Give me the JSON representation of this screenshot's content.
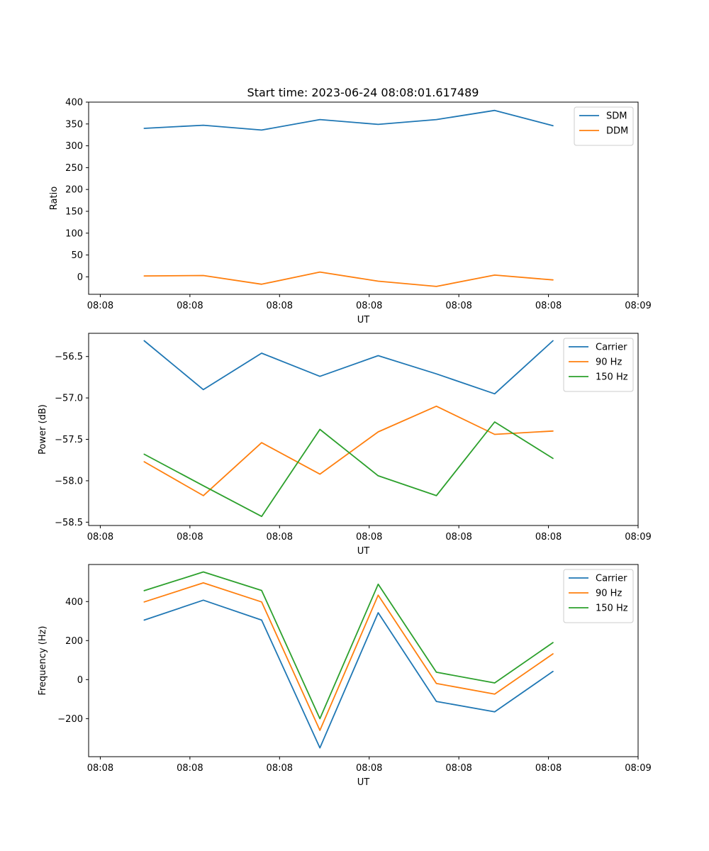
{
  "figure": {
    "title": "Start time: 2023-06-24 08:08:01.617489"
  },
  "chart_data": [
    {
      "type": "line",
      "title": "Start time: 2023-06-24 08:08:01.617489",
      "xlabel": "UT",
      "ylabel": "Ratio",
      "x_tick_labels": [
        "08:08",
        "08:08",
        "08:08",
        "08:08",
        "08:08",
        "08:08",
        "08:09"
      ],
      "x_ticks": [
        0,
        1,
        2,
        3,
        4,
        5,
        6
      ],
      "xlim": [
        -0.13,
        6.0
      ],
      "x": [
        0.49,
        1.15,
        1.8,
        2.45,
        3.1,
        3.75,
        4.4,
        5.05
      ],
      "ylim": [
        -40,
        400
      ],
      "y_ticks": [
        0,
        50,
        100,
        150,
        200,
        250,
        300,
        350,
        400
      ],
      "legend_position": "upper-right",
      "series": [
        {
          "name": "SDM",
          "color": "#1f77b4",
          "values": [
            340,
            347,
            336,
            360,
            349,
            360,
            381,
            346
          ]
        },
        {
          "name": "DDM",
          "color": "#ff7f0e",
          "values": [
            2,
            3,
            -17,
            11,
            -10,
            -22,
            4,
            -7
          ]
        }
      ]
    },
    {
      "type": "line",
      "xlabel": "UT",
      "ylabel": "Power (dB)",
      "x_tick_labels": [
        "08:08",
        "08:08",
        "08:08",
        "08:08",
        "08:08",
        "08:08",
        "08:09"
      ],
      "x_ticks": [
        0,
        1,
        2,
        3,
        4,
        5,
        6
      ],
      "xlim": [
        -0.13,
        6.0
      ],
      "x": [
        0.49,
        1.15,
        1.8,
        2.45,
        3.1,
        3.75,
        4.4,
        5.05
      ],
      "ylim": [
        -58.54,
        -56.22
      ],
      "y_ticks": [
        -58.5,
        -58.0,
        -57.5,
        -57.0,
        -56.5
      ],
      "y_tick_labels": [
        "−58.5",
        "−58.0",
        "−57.5",
        "−57.0",
        "−56.5"
      ],
      "legend_position": "upper-right",
      "series": [
        {
          "name": "Carrier",
          "color": "#1f77b4",
          "values": [
            -56.31,
            -56.9,
            -56.46,
            -56.74,
            -56.49,
            -56.71,
            -56.95,
            -56.31
          ]
        },
        {
          "name": "90 Hz",
          "color": "#ff7f0e",
          "values": [
            -57.77,
            -58.18,
            -57.54,
            -57.92,
            -57.41,
            -57.1,
            -57.44,
            -57.4
          ]
        },
        {
          "name": "150 Hz",
          "color": "#2ca02c",
          "values": [
            -57.68,
            -58.06,
            -58.43,
            -57.38,
            -57.94,
            -58.18,
            -57.29,
            -57.73
          ]
        }
      ]
    },
    {
      "type": "line",
      "xlabel": "UT",
      "ylabel": "Frequency (Hz)",
      "x_tick_labels": [
        "08:08",
        "08:08",
        "08:08",
        "08:08",
        "08:08",
        "08:08",
        "08:09"
      ],
      "x_ticks": [
        0,
        1,
        2,
        3,
        4,
        5,
        6
      ],
      "xlim": [
        -0.13,
        6.0
      ],
      "x": [
        0.49,
        1.15,
        1.8,
        2.45,
        3.1,
        3.75,
        4.4,
        5.05
      ],
      "ylim": [
        -395,
        590
      ],
      "y_ticks": [
        -200,
        0,
        200,
        400
      ],
      "y_tick_labels": [
        "−200",
        "0",
        "200",
        "400"
      ],
      "legend_position": "upper-right",
      "series": [
        {
          "name": "Carrier",
          "color": "#1f77b4",
          "values": [
            305,
            407,
            305,
            -350,
            343,
            -112,
            -165,
            42
          ]
        },
        {
          "name": "90 Hz",
          "color": "#ff7f0e",
          "values": [
            398,
            496,
            398,
            -260,
            433,
            -20,
            -74,
            132
          ]
        },
        {
          "name": "150 Hz",
          "color": "#2ca02c",
          "values": [
            456,
            552,
            457,
            -200,
            489,
            38,
            -17,
            190
          ]
        }
      ]
    }
  ]
}
